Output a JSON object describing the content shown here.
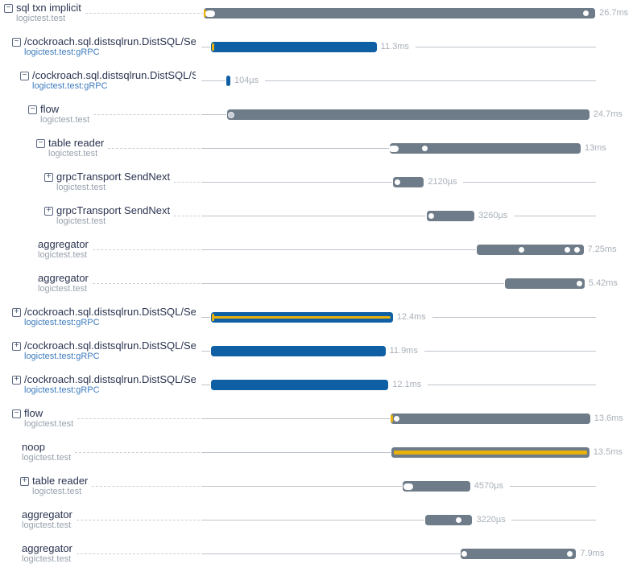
{
  "app": {
    "name": "trace span waterfall"
  },
  "colors": {
    "bar_gray": "#6e7b88",
    "bar_blue": "#0e5fa4",
    "accent_yellow": "#e9b10b",
    "title_text": "#2b3451",
    "subtitle_gray": "#98a1ad",
    "subtitle_blue": "#3d7cbe",
    "duration_label": "#a9b0b9",
    "leader_dash": "#cbd0d7",
    "timeline_line": "#bdc3ca"
  },
  "chart_data": {
    "type": "bar",
    "title": "distributed trace span waterfall (gantt)",
    "xlabel": "time",
    "total_ms": 26.9,
    "grid": false,
    "rows": [
      {
        "level": 0,
        "icon": "minus",
        "title": "sql txn implicit",
        "subtitle": "logictest.test",
        "subtitle_color": "gray",
        "bar": "gray",
        "stripe": false,
        "start_ms": 0.15,
        "duration_ms": 26.7,
        "label": "26.7ms",
        "trailing_line": false,
        "markers": [
          {
            "at_ms": 0.25,
            "kind": "tick"
          },
          {
            "at_ms": 0.6,
            "kind": "pill"
          },
          {
            "at_ms": 26.2,
            "kind": "dot"
          }
        ]
      },
      {
        "level": 1,
        "icon": "minus",
        "title": "/cockroach.sql.distsqlrun.DistSQL/Set",
        "subtitle": "logictest.test:gRPC",
        "subtitle_color": "blue",
        "bar": "blue",
        "stripe": false,
        "start_ms": 0.65,
        "duration_ms": 11.3,
        "label": "11.3ms",
        "trailing_line": true,
        "markers": [
          {
            "at_ms": 0.78,
            "kind": "tick"
          }
        ]
      },
      {
        "level": 2,
        "icon": "minus",
        "title": "/cockroach.sql.distsqlrun.DistSQL/S",
        "subtitle": "logictest.test:gRPC",
        "subtitle_color": "blue",
        "bar": "blue",
        "stripe": false,
        "start_ms": 1.7,
        "duration_ms": 0.104,
        "label": "104µs",
        "trailing_line": true,
        "markers": []
      },
      {
        "level": 3,
        "icon": "minus",
        "title": "flow",
        "subtitle": "logictest.test",
        "subtitle_color": "gray",
        "bar": "gray",
        "stripe": false,
        "start_ms": 1.75,
        "duration_ms": 24.7,
        "label": "24.7ms",
        "trailing_line": false,
        "markers": [
          {
            "at_ms": 2.05,
            "kind": "graydot"
          }
        ]
      },
      {
        "level": 4,
        "icon": "minus",
        "title": "table reader",
        "subtitle": "logictest.test",
        "subtitle_color": "gray",
        "bar": "gray",
        "stripe": false,
        "start_ms": 12.85,
        "duration_ms": 13.0,
        "label": "13ms",
        "trailing_line": false,
        "markers": [
          {
            "at_ms": 13.1,
            "kind": "pill"
          },
          {
            "at_ms": 15.25,
            "kind": "dot"
          }
        ]
      },
      {
        "level": 5,
        "icon": "plus",
        "title": "grpcTransport SendNext",
        "subtitle": "logictest.test",
        "subtitle_color": "gray",
        "bar": "gray",
        "stripe": false,
        "start_ms": 13.05,
        "duration_ms": 2.12,
        "label": "2120µs",
        "trailing_line": true,
        "markers": [
          {
            "at_ms": 13.35,
            "kind": "dot"
          }
        ]
      },
      {
        "level": 5,
        "icon": "plus",
        "title": "grpcTransport SendNext",
        "subtitle": "logictest.test",
        "subtitle_color": "gray",
        "bar": "gray",
        "stripe": false,
        "start_ms": 15.35,
        "duration_ms": 3.26,
        "label": "3260µs",
        "trailing_line": true,
        "markers": [
          {
            "at_ms": 15.65,
            "kind": "dot"
          }
        ]
      },
      {
        "level": 4,
        "icon": null,
        "title": "aggregator",
        "subtitle": "logictest.test",
        "subtitle_color": "gray",
        "bar": "gray",
        "stripe": false,
        "start_ms": 18.8,
        "duration_ms": 7.25,
        "label": "7.25ms",
        "trailing_line": false,
        "markers": [
          {
            "at_ms": 21.8,
            "kind": "dot"
          },
          {
            "at_ms": 24.95,
            "kind": "dot"
          },
          {
            "at_ms": 25.6,
            "kind": "dot"
          }
        ]
      },
      {
        "level": 4,
        "icon": null,
        "title": "aggregator",
        "subtitle": "logictest.test",
        "subtitle_color": "gray",
        "bar": "gray",
        "stripe": false,
        "start_ms": 20.7,
        "duration_ms": 5.42,
        "label": "5.42ms",
        "trailing_line": false,
        "markers": [
          {
            "at_ms": 25.8,
            "kind": "dot"
          }
        ]
      },
      {
        "level": 1,
        "icon": "plus",
        "title": "/cockroach.sql.distsqlrun.DistSQL/Set",
        "subtitle": "logictest.test:gRPC",
        "subtitle_color": "blue",
        "bar": "blue",
        "stripe": true,
        "start_ms": 0.65,
        "duration_ms": 12.4,
        "label": "12.4ms",
        "trailing_line": true,
        "markers": [
          {
            "at_ms": 0.78,
            "kind": "tick"
          }
        ]
      },
      {
        "level": 1,
        "icon": "plus",
        "title": "/cockroach.sql.distsqlrun.DistSQL/Set",
        "subtitle": "logictest.test:gRPC",
        "subtitle_color": "blue",
        "bar": "blue",
        "stripe": false,
        "start_ms": 0.65,
        "duration_ms": 11.9,
        "label": "11.9ms",
        "trailing_line": true,
        "markers": []
      },
      {
        "level": 1,
        "icon": "plus",
        "title": "/cockroach.sql.distsqlrun.DistSQL/Set",
        "subtitle": "logictest.test:gRPC",
        "subtitle_color": "blue",
        "bar": "blue",
        "stripe": false,
        "start_ms": 0.65,
        "duration_ms": 12.1,
        "label": "12.1ms",
        "trailing_line": true,
        "markers": []
      },
      {
        "level": 1,
        "icon": "minus",
        "title": "flow",
        "subtitle": "logictest.test",
        "subtitle_color": "gray",
        "bar": "gray",
        "stripe": false,
        "start_ms": 12.9,
        "duration_ms": 13.6,
        "label": "13.6ms",
        "trailing_line": false,
        "markers": [
          {
            "at_ms": 13.0,
            "kind": "tick"
          },
          {
            "at_ms": 13.3,
            "kind": "dot"
          }
        ]
      },
      {
        "level": 2,
        "icon": null,
        "title": "noop",
        "subtitle": "logictest.test",
        "subtitle_color": "gray",
        "bar": "gray",
        "stripe": true,
        "start_ms": 12.95,
        "duration_ms": 13.5,
        "label": "13.5ms",
        "trailing_line": false,
        "markers": []
      },
      {
        "level": 2,
        "icon": "plus",
        "title": "table reader",
        "subtitle": "logictest.test",
        "subtitle_color": "gray",
        "bar": "gray",
        "stripe": false,
        "start_ms": 13.75,
        "duration_ms": 4.57,
        "label": "4570µs",
        "trailing_line": true,
        "markers": [
          {
            "at_ms": 14.1,
            "kind": "pill"
          }
        ]
      },
      {
        "level": 2,
        "icon": null,
        "title": "aggregator",
        "subtitle": "logictest.test",
        "subtitle_color": "gray",
        "bar": "gray",
        "stripe": false,
        "start_ms": 15.25,
        "duration_ms": 3.22,
        "label": "3220µs",
        "trailing_line": true,
        "markers": [
          {
            "at_ms": 17.55,
            "kind": "dot"
          }
        ]
      },
      {
        "level": 2,
        "icon": null,
        "title": "aggregator",
        "subtitle": "logictest.test",
        "subtitle_color": "gray",
        "bar": "gray",
        "stripe": false,
        "start_ms": 17.65,
        "duration_ms": 7.9,
        "label": "7.9ms",
        "trailing_line": false,
        "markers": [
          {
            "at_ms": 17.95,
            "kind": "dot"
          },
          {
            "at_ms": 25.1,
            "kind": "dot"
          }
        ]
      }
    ]
  }
}
